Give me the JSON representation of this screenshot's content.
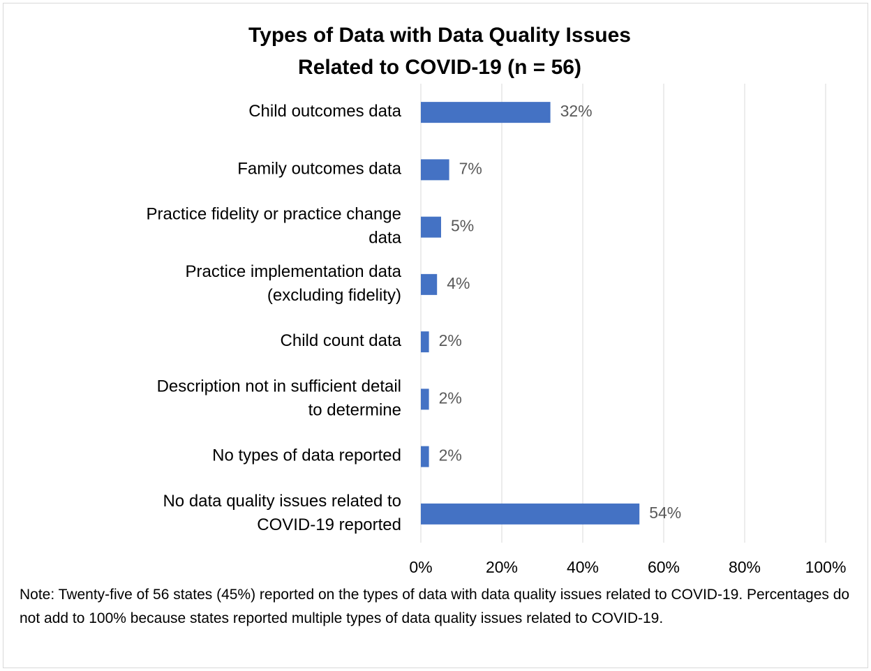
{
  "chart_data": {
    "type": "bar",
    "orientation": "horizontal",
    "title": [
      "Types of Data with Data Quality Issues",
      "Related to COVID-19 (n = 56)"
    ],
    "categories": [
      "Child outcomes data",
      "Family outcomes data",
      "Practice fidelity or practice change data",
      "Practice implementation data (excluding fidelity)",
      "Child count data",
      "Description not in sufficient detail to determine",
      "No types of data reported",
      "No data quality issues related to COVID-19 reported"
    ],
    "values": [
      32,
      7,
      5,
      4,
      2,
      2,
      2,
      54
    ],
    "value_labels": [
      "32%",
      "7%",
      "5%",
      "4%",
      "2%",
      "2%",
      "2%",
      "54%"
    ],
    "color": "#4472c4",
    "xlim": [
      0,
      100
    ],
    "xticks": [
      {
        "value": 0,
        "label": "0%"
      },
      {
        "value": 20,
        "label": "20%"
      },
      {
        "value": 40,
        "label": "40%"
      },
      {
        "value": 60,
        "label": "60%"
      },
      {
        "value": 80,
        "label": "80%"
      },
      {
        "value": 100,
        "label": "100%"
      }
    ],
    "grid": true,
    "note": "Note:  Twenty-five of 56 states (45%) reported on the types of data with data quality issues related to COVID-19. Percentages do not add to 100% because states reported multiple types of data quality issues related to COVID-19."
  }
}
